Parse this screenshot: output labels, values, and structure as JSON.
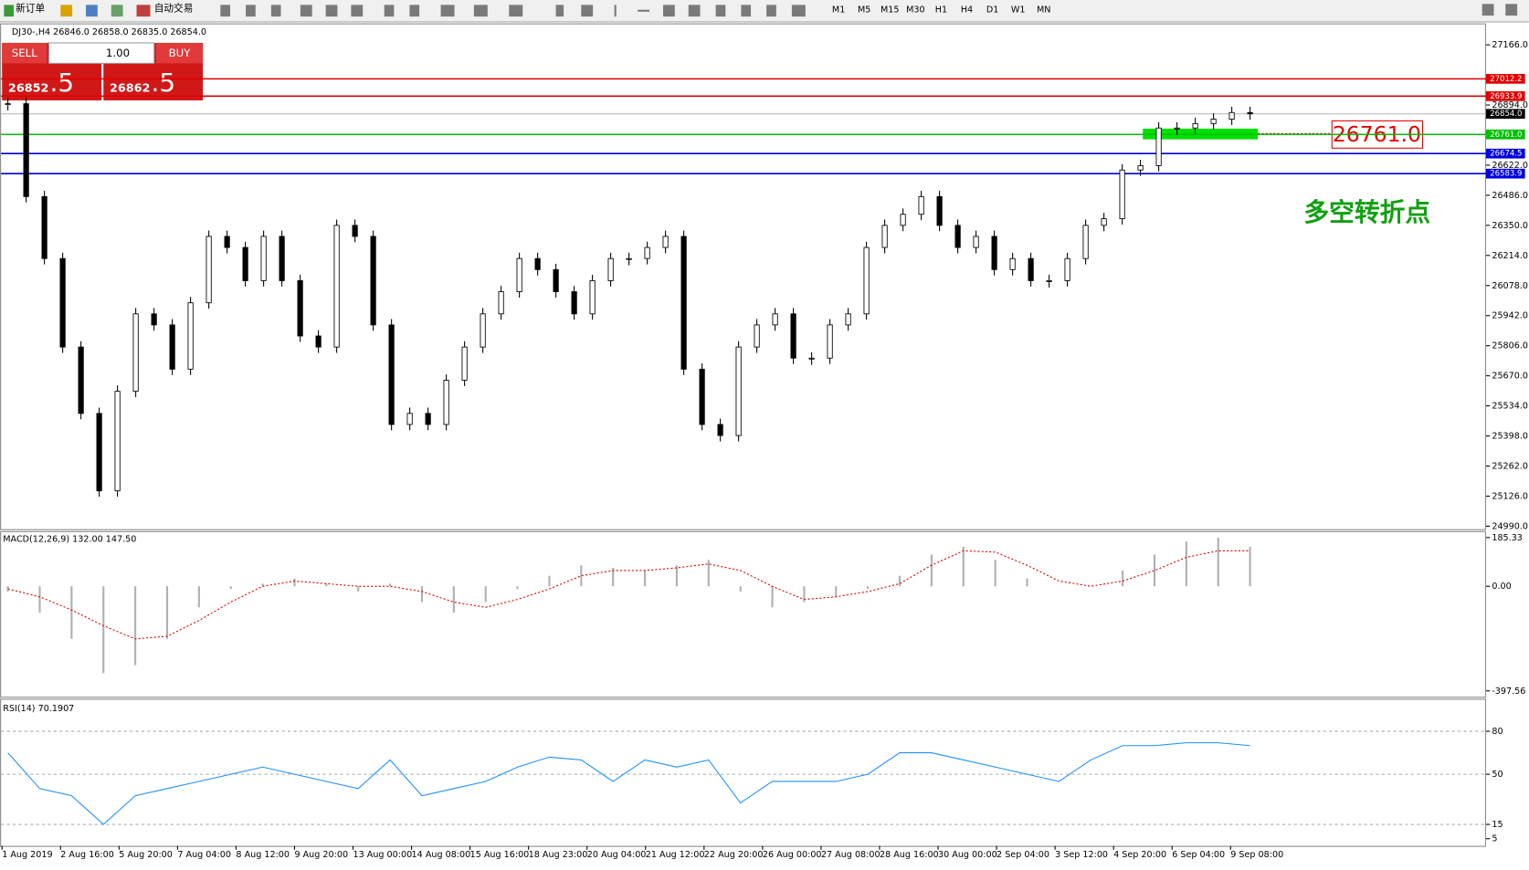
{
  "toolbar": {
    "new_order": "新订单",
    "auto_trade": "自动交易",
    "timeframes": [
      "M1",
      "M5",
      "M15",
      "M30",
      "H1",
      "H4",
      "D1",
      "W1",
      "MN"
    ]
  },
  "header": "DJ30-,H4  26846.0 26858.0 26835.0 26854.0",
  "trade_panel": {
    "sell": "SELL",
    "lot": "1.00",
    "buy": "BUY",
    "sell_price": "26852",
    "sell_pips": ".5",
    "buy_price": "26862",
    "buy_pips": ".5"
  },
  "price_chart": {
    "ylim": [
      24990,
      27166
    ],
    "yticks": [
      {
        "value": 27166,
        "label": "27166.0"
      },
      {
        "value": 26894,
        "label": "26894.0"
      },
      {
        "value": 26622,
        "label": "26622.0"
      },
      {
        "value": 26486,
        "label": "26486.0"
      },
      {
        "value": 26350,
        "label": "26350.0"
      },
      {
        "value": 26214,
        "label": "26214.0"
      },
      {
        "value": 26078,
        "label": "26078.0"
      },
      {
        "value": 25942,
        "label": "25942.0"
      },
      {
        "value": 25806,
        "label": "25806.0"
      },
      {
        "value": 25670,
        "label": "25670.0"
      },
      {
        "value": 25534,
        "label": "25534.0"
      },
      {
        "value": 25398,
        "label": "25398.0"
      },
      {
        "value": 25262,
        "label": "25262.0"
      },
      {
        "value": 25126,
        "label": "25126.0"
      },
      {
        "value": 24990,
        "label": "24990.0"
      }
    ],
    "levels": [
      {
        "value": 27012.2,
        "label": "27012.2",
        "color": "#e00000"
      },
      {
        "value": 26933.9,
        "label": "26933.9",
        "color": "#e00000"
      },
      {
        "value": 26761,
        "label": "26761.0",
        "color": "#00c000"
      },
      {
        "value": 26674.5,
        "label": "26674.5",
        "color": "#0000e0"
      },
      {
        "value": 26583.9,
        "label": "26583.9",
        "color": "#0000e0"
      }
    ],
    "current": {
      "value": 26854,
      "label": "26854.0"
    },
    "closes": [
      26900,
      26480,
      26200,
      25800,
      25500,
      25150,
      25600,
      25950,
      25900,
      25700,
      26000,
      26300,
      26250,
      26100,
      26300,
      26100,
      25850,
      25800,
      26350,
      26300,
      25900,
      25450,
      25500,
      25450,
      25650,
      25800,
      25950,
      26050,
      26200,
      26150,
      26050,
      25950,
      26100,
      26200,
      26200,
      26250,
      26300,
      25700,
      25450,
      25400,
      25800,
      25900,
      25950,
      25750,
      25750,
      25900,
      25950,
      26250,
      26350,
      26400,
      26480,
      26350,
      26250,
      26300,
      26150,
      26200,
      26100,
      26100,
      26200,
      26350,
      26380,
      26600,
      26620,
      26790,
      26790,
      26810,
      26830,
      26860,
      26854
    ],
    "annotation_box": "26761.0",
    "annotation_text": "多空转折点"
  },
  "macd": {
    "label": "MACD(12,26,9) 132.00 147.50",
    "ylim": [
      -420,
      206
    ],
    "yticks": [
      185.33,
      {
        "value": 0,
        "label": "0.00"
      },
      -397.56
    ],
    "histogram": [
      -20,
      -100,
      -200,
      -330,
      -300,
      -200,
      -80,
      -10,
      10,
      30,
      10,
      -20,
      10,
      -60,
      -100,
      -60,
      -10,
      40,
      80,
      70,
      60,
      80,
      100,
      -20,
      -80,
      -60,
      -40,
      -10,
      40,
      120,
      150,
      100,
      30,
      0,
      0,
      60,
      120,
      170,
      185,
      150
    ],
    "signal": [
      -10,
      -40,
      -90,
      -150,
      -200,
      -190,
      -130,
      -60,
      0,
      20,
      10,
      0,
      0,
      -20,
      -60,
      -80,
      -50,
      -10,
      40,
      60,
      60,
      70,
      85,
      60,
      0,
      -50,
      -40,
      -20,
      10,
      80,
      135,
      130,
      80,
      20,
      0,
      20,
      60,
      110,
      135,
      135
    ]
  },
  "rsi": {
    "label": "RSI(14) 70.1907",
    "ylim": [
      0,
      100
    ],
    "yticks": [
      80,
      50,
      15,
      5
    ],
    "grid": [
      80,
      50,
      15
    ],
    "values": [
      65,
      40,
      35,
      15,
      35,
      40,
      45,
      50,
      55,
      50,
      45,
      40,
      60,
      35,
      40,
      45,
      55,
      62,
      60,
      45,
      60,
      55,
      60,
      30,
      45,
      45,
      45,
      50,
      65,
      65,
      60,
      55,
      50,
      45,
      60,
      70,
      70,
      72,
      72,
      70
    ]
  },
  "dates": [
    "1 Aug 2019",
    "2 Aug 16:00",
    "5 Aug 20:00",
    "7 Aug 04:00",
    "8 Aug 12:00",
    "9 Aug 20:00",
    "13 Aug 00:00",
    "14 Aug 08:00",
    "15 Aug 16:00",
    "18 Aug 23:00",
    "20 Aug 04:00",
    "21 Aug 12:00",
    "22 Aug 20:00",
    "26 Aug 00:00",
    "27 Aug 08:00",
    "28 Aug 16:00",
    "30 Aug 00:00",
    "2 Sep 04:00",
    "3 Sep 12:00",
    "4 Sep 20:00",
    "6 Sep 04:00",
    "9 Sep 08:00"
  ]
}
